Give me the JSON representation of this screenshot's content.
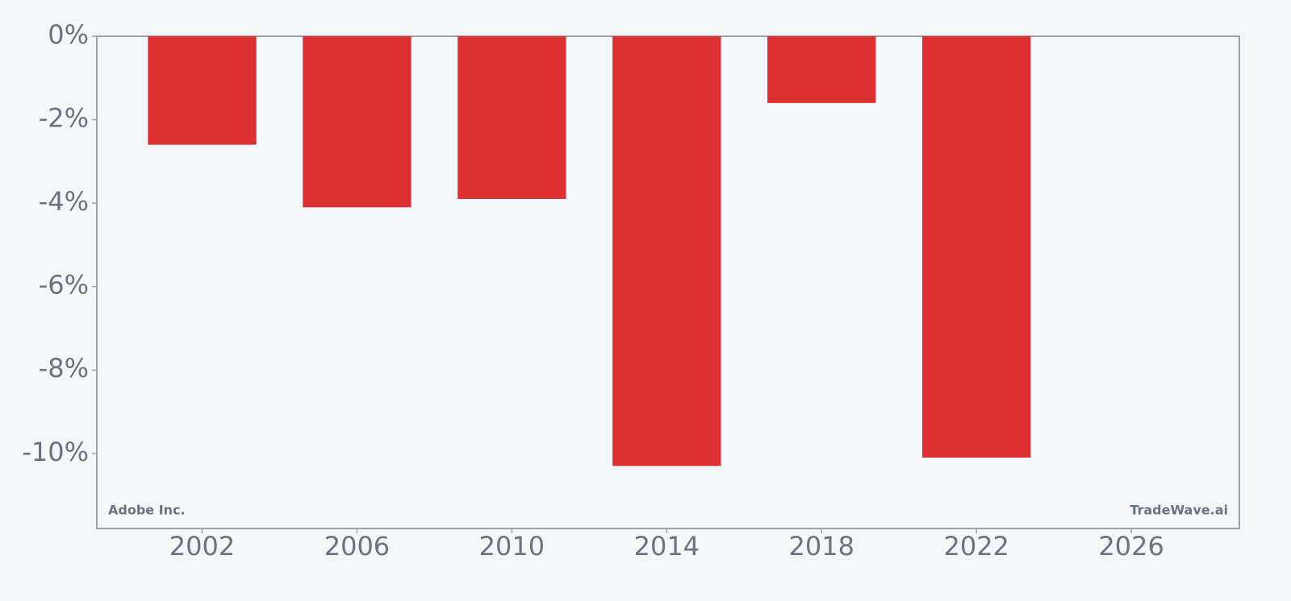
{
  "chart_data": {
    "type": "bar",
    "x": [
      2002,
      2006,
      2010,
      2014,
      2018,
      2022
    ],
    "values": [
      -2.6,
      -4.1,
      -3.9,
      -10.3,
      -1.6,
      -10.1
    ],
    "color": "#dc3031",
    "xlim": [
      1999.28,
      2028.79
    ],
    "xticks": [
      2002,
      2006,
      2010,
      2014,
      2018,
      2022,
      2026
    ],
    "ylim": [
      -11.8,
      0
    ],
    "yticks": [
      {
        "value": 0,
        "label": "0%"
      },
      {
        "value": -2,
        "label": "-2%"
      },
      {
        "value": -4,
        "label": "-4%"
      },
      {
        "value": -6,
        "label": "-6%"
      },
      {
        "value": -8,
        "label": "-8%"
      },
      {
        "value": -10,
        "label": "-10%"
      }
    ],
    "annotations": [
      "Adobe Inc.",
      "TradeWave.ai"
    ]
  }
}
